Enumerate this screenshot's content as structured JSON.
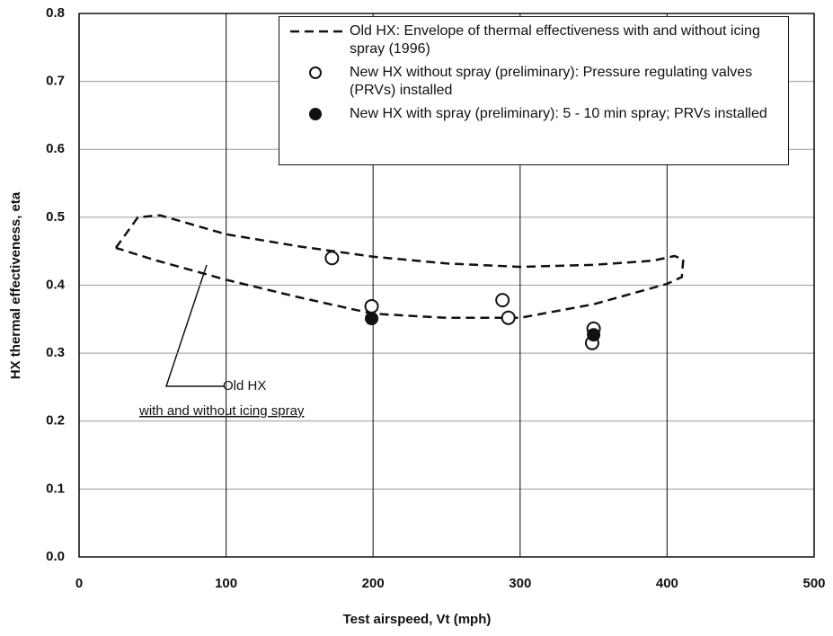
{
  "chart_data": {
    "type": "scatter",
    "xlabel": "Test airspeed, Vt (mph)",
    "ylabel": "HX thermal effectiveness, eta",
    "xlim": [
      0,
      500
    ],
    "xticks": [
      0,
      100,
      200,
      300,
      400,
      500
    ],
    "ylim": [
      0,
      0.8
    ],
    "yticks": [
      {
        "value": 0,
        "label": "0.0"
      },
      0.1,
      0.2,
      0.3,
      0.4,
      0.5,
      0.6,
      0.7,
      0.8
    ],
    "grid": true,
    "legend": "upper right",
    "series": [
      {
        "name": "Old HX: Envelope of thermal effectiveness with and without icing spray (1996)",
        "color": "#111111",
        "mode": "dashed-line",
        "x": [
          25,
          40,
          55,
          100,
          150,
          200,
          250,
          300,
          350,
          390,
          405,
          411,
          410,
          400,
          350,
          300,
          250,
          200,
          150,
          100,
          50,
          25
        ],
        "y": [
          0.455,
          0.5,
          0.503,
          0.475,
          0.457,
          0.442,
          0.432,
          0.427,
          0.43,
          0.436,
          0.443,
          0.438,
          0.412,
          0.402,
          0.372,
          0.352,
          0.352,
          0.358,
          0.382,
          0.408,
          0.438,
          0.455
        ]
      },
      {
        "name": "New HX without spray (preliminary): Pressure regulating valves (PRVs) installed",
        "color": "#111111",
        "mode": "open-marker",
        "x": [
          172,
          199,
          288,
          292,
          350,
          349
        ],
        "y": [
          0.44,
          0.369,
          0.378,
          0.352,
          0.336,
          0.315
        ]
      },
      {
        "name": "New HX with spray (preliminary): 5 - 10 min  spray; PRVs installed",
        "color": "#111111",
        "mode": "filled-marker",
        "x": [
          199,
          350
        ],
        "y": [
          0.351,
          0.327
        ]
      }
    ],
    "annotations": [
      "Old HX",
      "with and without icing spray"
    ]
  }
}
